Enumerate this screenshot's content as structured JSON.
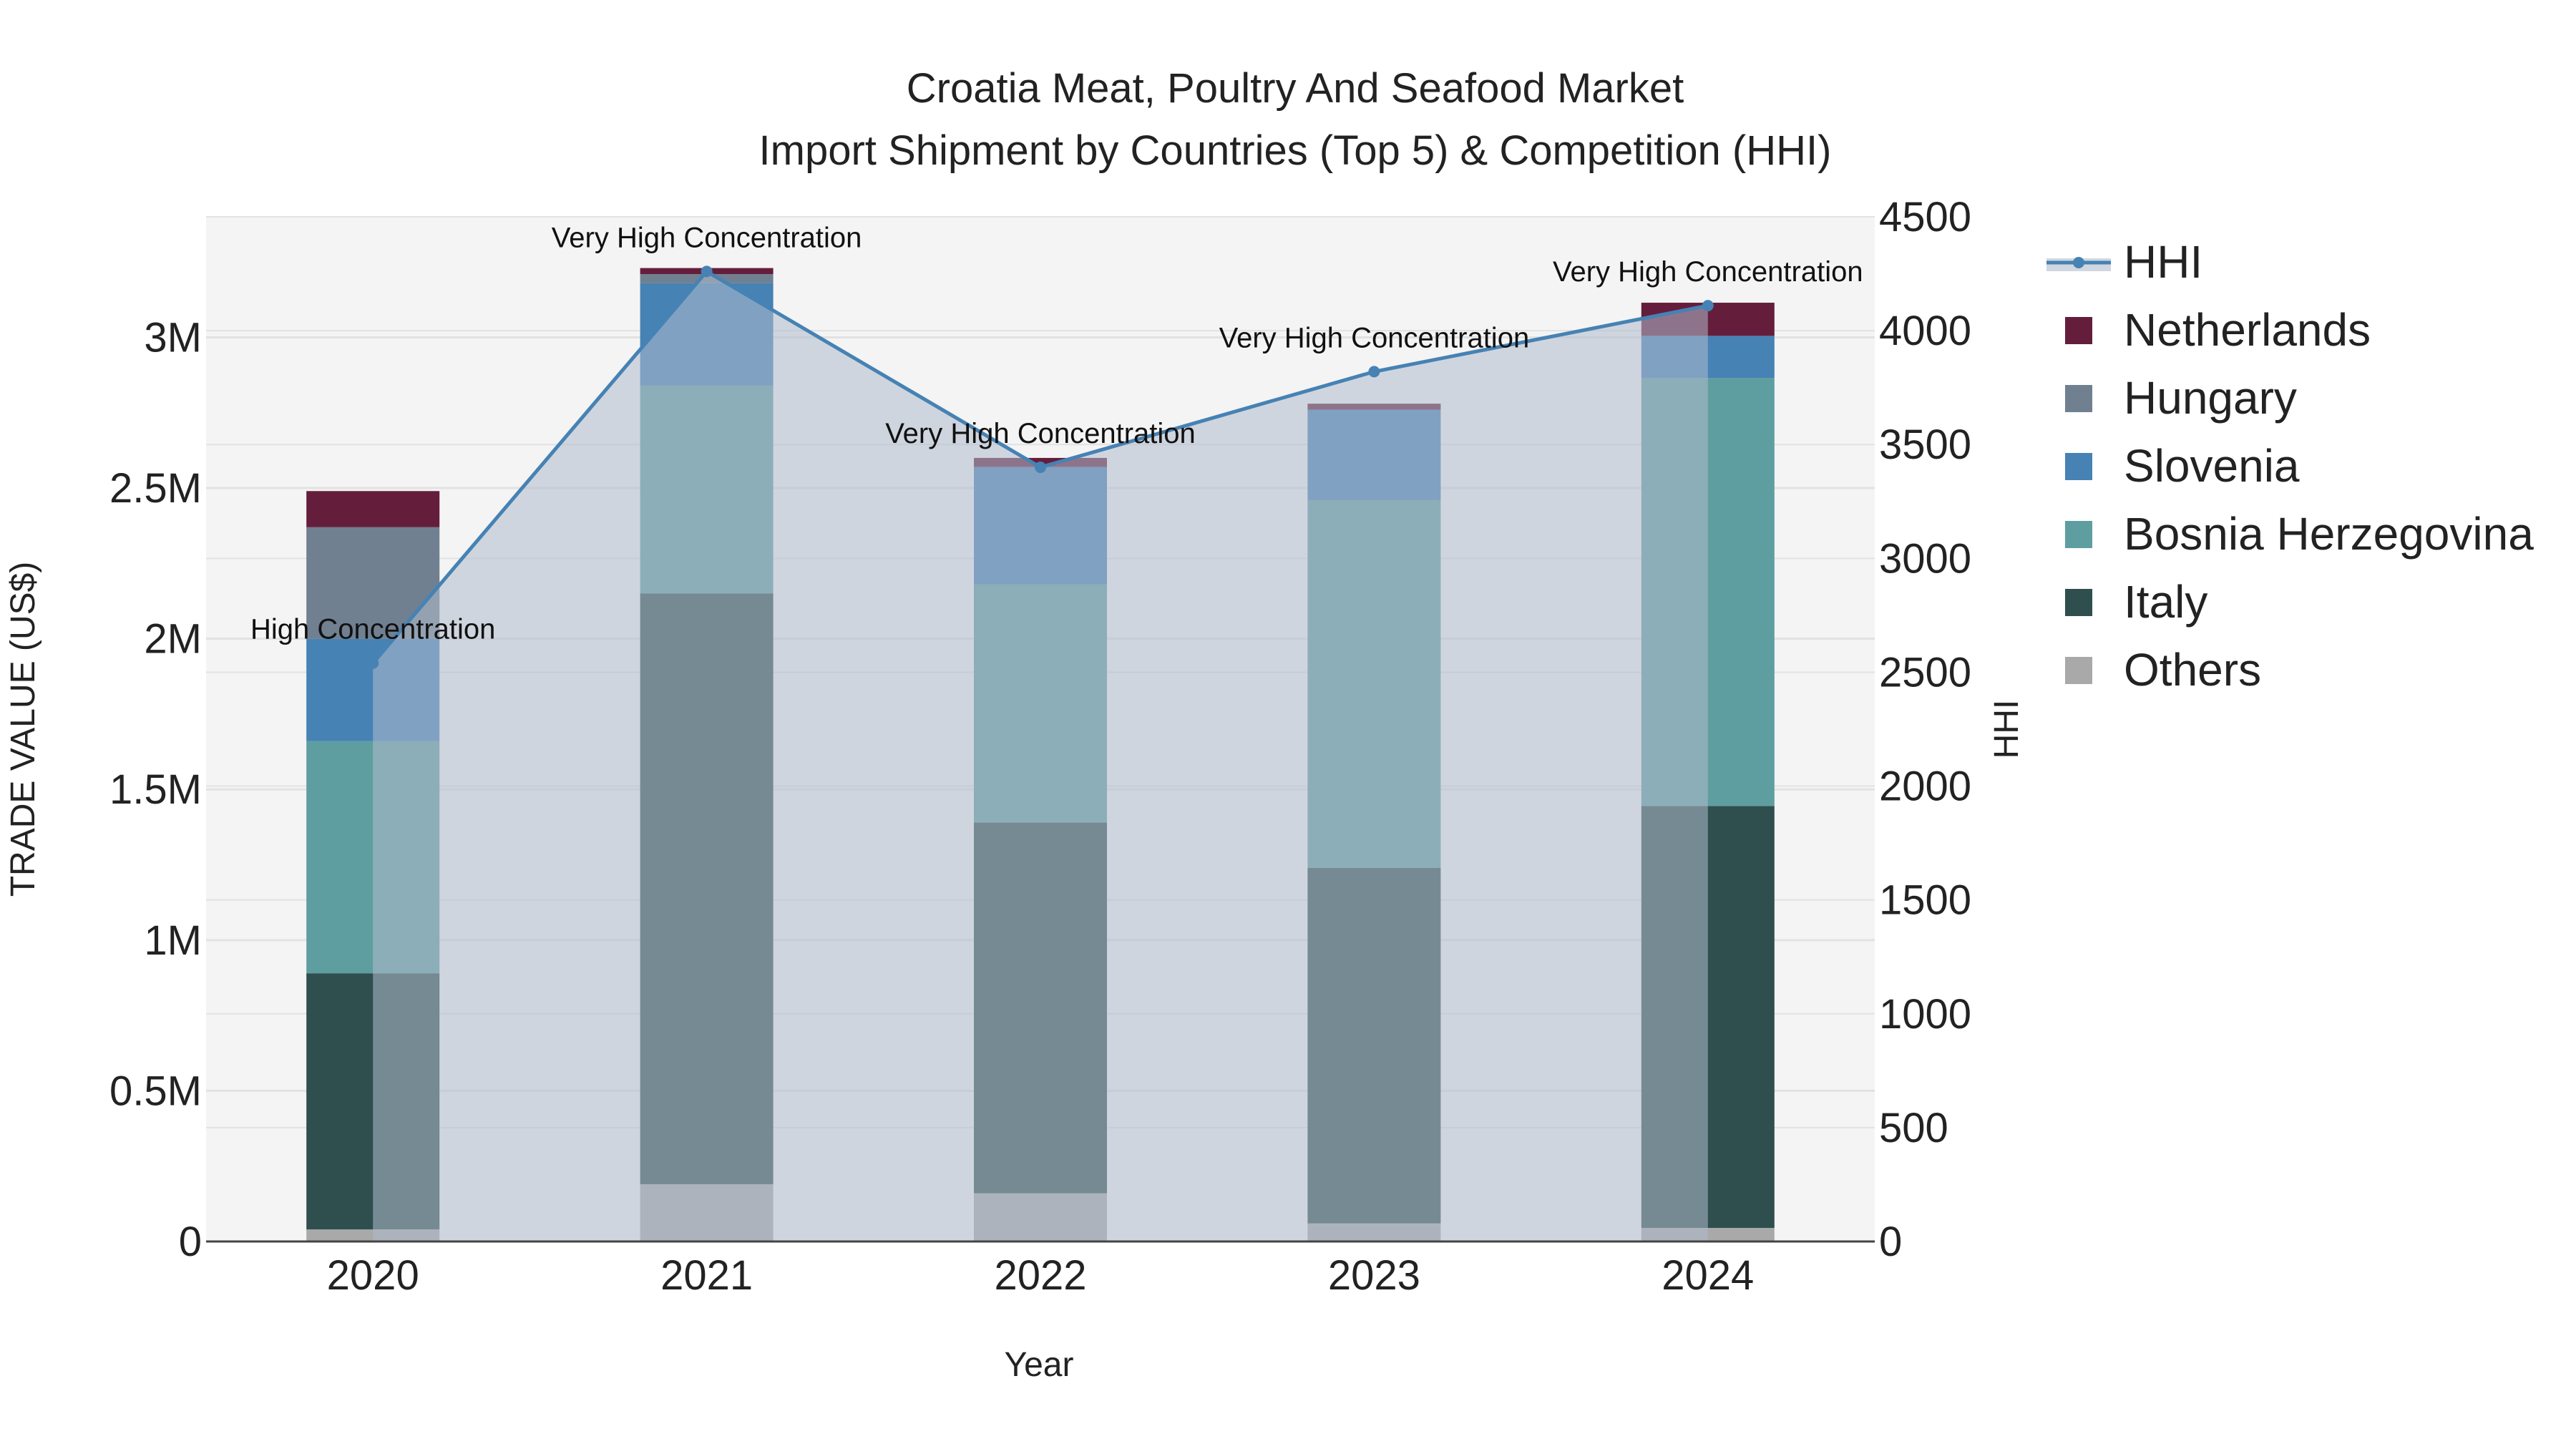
{
  "chart_data": {
    "type": "bar",
    "title_line1": "Croatia Meat, Poultry And Seafood Market",
    "title_line2": "Import Shipment by Countries (Top 5) & Competition (HHI)",
    "xlabel": "Year",
    "ylabel": "TRADE VALUE (US$)",
    "y2label": "HHI",
    "categories": [
      "2020",
      "2021",
      "2022",
      "2023",
      "2024"
    ],
    "ylim": [
      0,
      3400000
    ],
    "y2lim": [
      0,
      4500
    ],
    "yticks": [
      {
        "value": 0,
        "label": "0"
      },
      {
        "value": 500000,
        "label": "0.5M"
      },
      {
        "value": 1000000,
        "label": "1M"
      },
      {
        "value": 1500000,
        "label": "1.5M"
      },
      {
        "value": 2000000,
        "label": "2M"
      },
      {
        "value": 2500000,
        "label": "2.5M"
      },
      {
        "value": 3000000,
        "label": "3M"
      }
    ],
    "y2ticks": [
      {
        "value": 0,
        "label": "0"
      },
      {
        "value": 500,
        "label": "500"
      },
      {
        "value": 1000,
        "label": "1000"
      },
      {
        "value": 1500,
        "label": "1500"
      },
      {
        "value": 2000,
        "label": "2000"
      },
      {
        "value": 2500,
        "label": "2500"
      },
      {
        "value": 3000,
        "label": "3000"
      },
      {
        "value": 3500,
        "label": "3500"
      },
      {
        "value": 4000,
        "label": "4000"
      },
      {
        "value": 4500,
        "label": "4500"
      }
    ],
    "series": [
      {
        "name": "Others",
        "color": "#a9a9a9",
        "values": [
          40000,
          190000,
          160000,
          60000,
          45000
        ]
      },
      {
        "name": "Italy",
        "color": "#2f4f4f",
        "values": [
          850000,
          1960000,
          1230000,
          1180000,
          1400000
        ]
      },
      {
        "name": "Bosnia Herzegovina",
        "color": "#5f9ea0",
        "values": [
          770000,
          690000,
          790000,
          1220000,
          1420000
        ]
      },
      {
        "name": "Slovenia",
        "color": "#4682b4",
        "values": [
          340000,
          340000,
          390000,
          300000,
          140000
        ]
      },
      {
        "name": "Hungary",
        "color": "#708090",
        "values": [
          370000,
          30000,
          0,
          0,
          0
        ]
      },
      {
        "name": "Netherlands",
        "color": "#641e3c",
        "values": [
          120000,
          20000,
          30000,
          20000,
          110000
        ]
      }
    ],
    "hhi": {
      "name": "HHI",
      "color": "#4682b4",
      "values": [
        2540,
        4260,
        3400,
        3820,
        4110
      ],
      "labels": [
        "High Concentration",
        "Very High Concentration",
        "Very High Concentration",
        "Very High Concentration",
        "Very High Concentration"
      ]
    },
    "legend": [
      "HHI",
      "Netherlands",
      "Hungary",
      "Slovenia",
      "Bosnia Herzegovina",
      "Italy",
      "Others"
    ]
  }
}
